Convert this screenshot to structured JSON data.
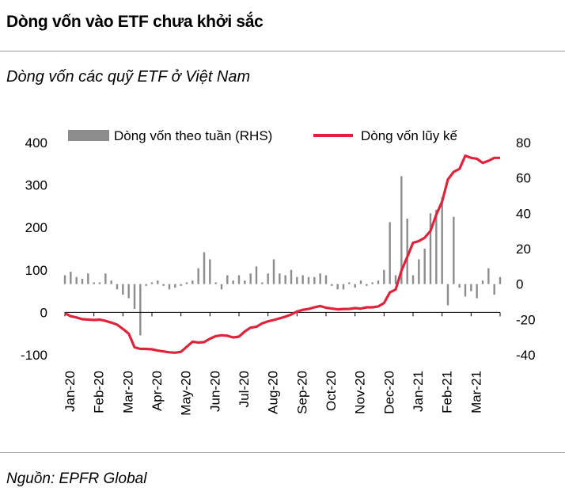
{
  "headline": "Dòng vốn vào ETF chưa khởi sắc",
  "subtitle": "Dòng vốn các quỹ ETF ở Việt Nam",
  "source": "Nguồn: EPFR Global",
  "colors": {
    "bar": "#8c8c8c",
    "line": "#e0233c",
    "rule": "#9a9a9a"
  },
  "chart_data": {
    "type": "bar+line",
    "title": "Dòng vốn các quỹ ETF ở Việt Nam",
    "legend": {
      "bar_label": "Dòng vốn theo tuần (RHS)",
      "line_label": "Dòng vốn lũy kế",
      "placement": "top"
    },
    "left_axis": {
      "range": [
        -100,
        400
      ],
      "ticks": [
        "400",
        "300",
        "200",
        "100",
        "0",
        "-100"
      ]
    },
    "right_axis": {
      "range": [
        -40,
        80
      ],
      "ticks": [
        "80",
        "60",
        "40",
        "20",
        "0",
        "-20",
        "-40"
      ]
    },
    "x_labels": [
      "Jan-20",
      "Feb-20",
      "Mar-20",
      "Apr-20",
      "May-20",
      "Jun-20",
      "Jul-20",
      "Aug-20",
      "Sep-20",
      "Oct-20",
      "Nov-20",
      "Dec-20",
      "Jan-21",
      "Feb-21",
      "Mar-21"
    ],
    "series": [
      {
        "name": "Dòng vốn theo tuần (RHS)",
        "type": "bar",
        "axis": "right",
        "values": [
          5,
          7,
          4,
          3,
          6,
          1,
          1,
          6,
          2,
          -3,
          -6,
          -8,
          -14,
          -29,
          -1,
          1,
          2,
          -1,
          -3,
          -2,
          -1,
          1,
          2,
          9,
          18,
          14,
          1,
          -3,
          5,
          2,
          5,
          2,
          6,
          10,
          1,
          6,
          14,
          6,
          5,
          8,
          4,
          5,
          4,
          4,
          6,
          5,
          -1,
          -3,
          -3,
          1,
          -2,
          2,
          -1,
          1,
          2,
          8,
          35,
          5,
          61,
          37,
          5,
          14,
          20,
          40,
          42,
          49,
          -12,
          38,
          -2,
          -7,
          -4,
          -8,
          2,
          9,
          -6,
          4
        ]
      },
      {
        "name": "Dòng vốn lũy kế",
        "type": "line",
        "axis": "left",
        "values": [
          -2,
          -9,
          -12,
          -16,
          -17,
          -18,
          -17,
          -20,
          -24,
          -29,
          -39,
          -50,
          -82,
          -86,
          -86,
          -87,
          -90,
          -92,
          -94,
          -95,
          -93,
          -81,
          -69,
          -71,
          -70,
          -62,
          -56,
          -54,
          -55,
          -59,
          -57,
          -45,
          -36,
          -34,
          -26,
          -21,
          -18,
          -14,
          -10,
          -5,
          2,
          6,
          8,
          12,
          15,
          11,
          9,
          7,
          8,
          8,
          10,
          9,
          12,
          12,
          14,
          22,
          47,
          54,
          98,
          131,
          164,
          168,
          176,
          192,
          230,
          261,
          313,
          331,
          338,
          369,
          364,
          362,
          352,
          357,
          364,
          364
        ]
      }
    ]
  }
}
